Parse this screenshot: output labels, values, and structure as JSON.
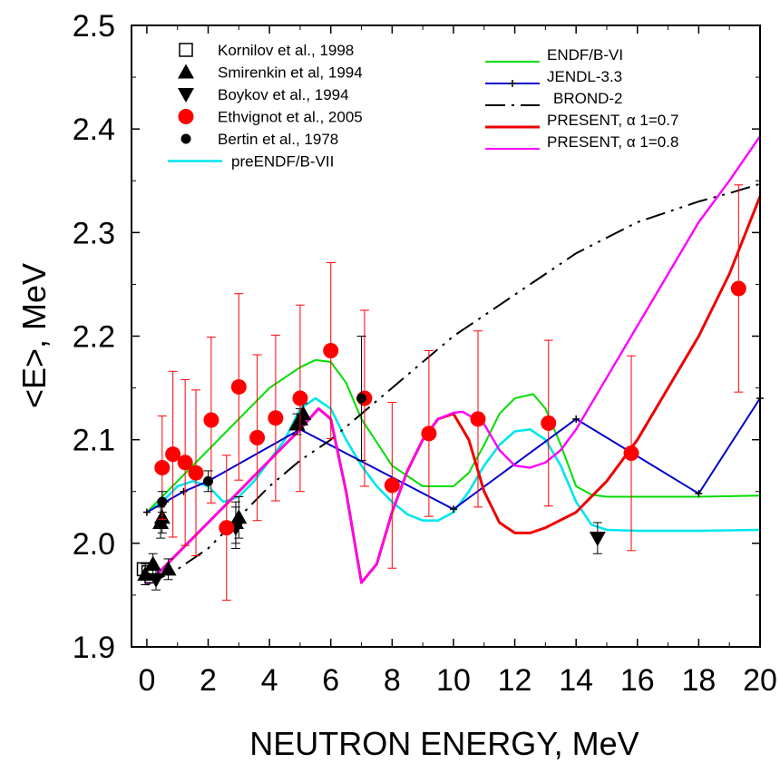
{
  "chart_data": {
    "type": "line",
    "xlabel": "NEUTRON ENERGY, MeV",
    "ylabel": "<E>, MeV",
    "xlim": [
      -0.5,
      20
    ],
    "ylim": [
      1.9,
      2.5
    ],
    "xticks": [
      "0",
      "2",
      "4",
      "6",
      "8",
      "10",
      "12",
      "14",
      "16",
      "18",
      "20"
    ],
    "yticks": [
      "1.9",
      "2.0",
      "2.1",
      "2.2",
      "2.3",
      "2.4",
      "2.5"
    ],
    "grid": false,
    "legend_left": [
      {
        "label": "Kornilov et al., 1998",
        "marker": "square-open"
      },
      {
        "label": "Smirenkin et al, 1994",
        "marker": "triangle-up"
      },
      {
        "label": "Boykov et al., 1994",
        "marker": "triangle-down"
      },
      {
        "label": "Ethvignot et al.,  2005",
        "marker": "circle-red"
      },
      {
        "label": "Bertin et al., 1978",
        "marker": "circle-black"
      },
      {
        "label": "preENDF/B-VII",
        "marker": "line-cyan"
      }
    ],
    "legend_right": [
      {
        "label": "ENDF/B-VI",
        "marker": "line-green"
      },
      {
        "label": "JENDL-3.3",
        "marker": "line-blue-plus"
      },
      {
        "label": "BROND-2",
        "marker": "line-dashdot"
      },
      {
        "label": "PRESENT, α 1=0.7",
        "marker": "line-red"
      },
      {
        "label": "PRESENT, α 1=0.8",
        "marker": "line-magenta"
      }
    ],
    "series": [
      {
        "name": "Kornilov et al., 1998",
        "kind": "scatter",
        "color": "#000000",
        "x": [
          -0.1,
          0.05,
          0.15
        ],
        "y": [
          1.975,
          1.972,
          1.968
        ],
        "yerr": [
          0.006,
          0.006,
          0.006
        ]
      },
      {
        "name": "Smirenkin et al, 1994",
        "kind": "scatter",
        "color": "#000000",
        "x": [
          -0.05,
          0.2,
          0.45,
          0.5,
          0.7,
          4.9,
          5.0,
          5.1,
          2.9,
          3.0
        ],
        "y": [
          1.97,
          1.98,
          2.02,
          2.025,
          1.975,
          2.115,
          2.12,
          2.125,
          2.02,
          2.025
        ],
        "yerr": [
          0.01,
          0.01,
          0.015,
          0.015,
          0.01,
          0.01,
          0.01,
          0.01,
          0.02,
          0.02
        ]
      },
      {
        "name": "Boykov et al., 1994",
        "kind": "scatter",
        "color": "#000000",
        "x": [
          0.3,
          2.9,
          14.7
        ],
        "y": [
          1.965,
          2.015,
          2.005
        ],
        "yerr": [
          0.01,
          0.02,
          0.015
        ]
      },
      {
        "name": "Ethvignot et al.,  2005",
        "kind": "scatter",
        "color": "#ff0000",
        "x": [
          0.5,
          0.85,
          1.25,
          1.6,
          2.1,
          2.6,
          3.0,
          3.6,
          4.2,
          5.0,
          6.0,
          7.1,
          8.0,
          9.2,
          10.8,
          13.1,
          15.8,
          19.3
        ],
        "y": [
          2.073,
          2.086,
          2.078,
          2.068,
          2.119,
          2.015,
          2.151,
          2.102,
          2.121,
          2.14,
          2.186,
          2.14,
          2.056,
          2.106,
          2.12,
          2.116,
          2.087,
          2.246
        ],
        "yerr": [
          0.05,
          0.08,
          0.08,
          0.08,
          0.08,
          0.07,
          0.09,
          0.08,
          0.08,
          0.09,
          0.085,
          0.085,
          0.08,
          0.08,
          0.085,
          0.08,
          0.094,
          0.1
        ]
      },
      {
        "name": "Bertin et al., 1978",
        "kind": "scatter",
        "color": "#000000",
        "x": [
          0.5,
          2.0,
          7.0
        ],
        "y": [
          2.04,
          2.06,
          2.14
        ],
        "yerr": [
          0.01,
          0.01,
          0.06
        ]
      },
      {
        "name": "preENDF/B-VII",
        "kind": "line",
        "color": "#00e5ee",
        "x": [
          0,
          0.5,
          1,
          1.5,
          2,
          2.5,
          3,
          3.5,
          4,
          4.5,
          5,
          5.5,
          6,
          6.5,
          7,
          7.5,
          8,
          8.5,
          9,
          9.5,
          10,
          10.5,
          11,
          11.5,
          12,
          12.5,
          13,
          13.5,
          14,
          14.5,
          15,
          16,
          18,
          20
        ],
        "y": [
          2.03,
          2.04,
          2.055,
          2.06,
          2.055,
          2.04,
          2.045,
          2.06,
          2.08,
          2.1,
          2.13,
          2.14,
          2.13,
          2.1,
          2.075,
          2.055,
          2.04,
          2.028,
          2.022,
          2.022,
          2.03,
          2.05,
          2.075,
          2.095,
          2.108,
          2.11,
          2.1,
          2.075,
          2.04,
          2.018,
          2.013,
          2.012,
          2.012,
          2.013
        ]
      },
      {
        "name": "ENDF/B-VI",
        "kind": "line",
        "color": "#00dd00",
        "x": [
          0,
          1,
          2,
          3,
          4,
          5,
          5.5,
          6,
          6.5,
          7,
          8,
          9,
          10,
          10.5,
          11,
          11.5,
          12,
          12.6,
          13,
          13.5,
          14,
          14.5,
          15,
          16,
          18,
          20
        ],
        "y": [
          2.03,
          2.06,
          2.09,
          2.12,
          2.15,
          2.17,
          2.177,
          2.175,
          2.155,
          2.12,
          2.075,
          2.055,
          2.055,
          2.068,
          2.095,
          2.125,
          2.14,
          2.144,
          2.13,
          2.095,
          2.055,
          2.047,
          2.045,
          2.045,
          2.045,
          2.046
        ]
      },
      {
        "name": "JENDL-3.3",
        "kind": "line-marker",
        "color": "#0000cc",
        "x": [
          0,
          0.6,
          1.2,
          2,
          5,
          10,
          14,
          18,
          20
        ],
        "y": [
          2.03,
          2.04,
          2.05,
          2.06,
          2.11,
          2.033,
          2.12,
          2.048,
          2.14
        ]
      },
      {
        "name": "BROND-2",
        "kind": "line",
        "color": "#000000",
        "x": [
          0,
          1,
          2,
          3,
          4,
          5,
          6,
          7,
          8,
          9,
          10,
          11,
          12,
          13,
          14,
          15,
          16,
          17,
          18,
          19,
          20
        ],
        "y": [
          1.96,
          1.975,
          1.995,
          2.025,
          2.055,
          2.08,
          2.1,
          2.125,
          2.15,
          2.175,
          2.2,
          2.22,
          2.24,
          2.26,
          2.28,
          2.295,
          2.31,
          2.32,
          2.33,
          2.338,
          2.347
        ]
      },
      {
        "name": "PRESENT, α 1=0.7",
        "kind": "line",
        "color": "#ee0000",
        "x": [
          0,
          1,
          2,
          3,
          4,
          5,
          5.6,
          6,
          6.5,
          7,
          7.5,
          8,
          8.5,
          9,
          9.5,
          10,
          10.5,
          11,
          11.5,
          12,
          12.5,
          13,
          14,
          15,
          16,
          17,
          18,
          19,
          20
        ],
        "y": [
          1.96,
          1.99,
          2.02,
          2.05,
          2.08,
          2.11,
          2.13,
          2.12,
          2.05,
          1.962,
          1.98,
          2.03,
          2.07,
          2.1,
          2.12,
          2.125,
          2.1,
          2.05,
          2.02,
          2.01,
          2.01,
          2.015,
          2.03,
          2.06,
          2.1,
          2.15,
          2.2,
          2.26,
          2.335
        ]
      },
      {
        "name": "PRESENT, α 1=0.8",
        "kind": "line",
        "color": "#ff00ff",
        "x": [
          0,
          1,
          2,
          3,
          4,
          5,
          5.6,
          6,
          6.5,
          7,
          7.5,
          8,
          8.5,
          9,
          9.5,
          10,
          10.3,
          11,
          11.5,
          12,
          12.5,
          13,
          13.5,
          14,
          15,
          16,
          17,
          18,
          19,
          20
        ],
        "y": [
          1.96,
          1.99,
          2.02,
          2.05,
          2.08,
          2.11,
          2.13,
          2.12,
          2.05,
          1.962,
          1.98,
          2.03,
          2.07,
          2.1,
          2.12,
          2.126,
          2.127,
          2.115,
          2.09,
          2.075,
          2.073,
          2.078,
          2.09,
          2.11,
          2.16,
          2.21,
          2.26,
          2.31,
          2.35,
          2.393
        ]
      }
    ]
  }
}
